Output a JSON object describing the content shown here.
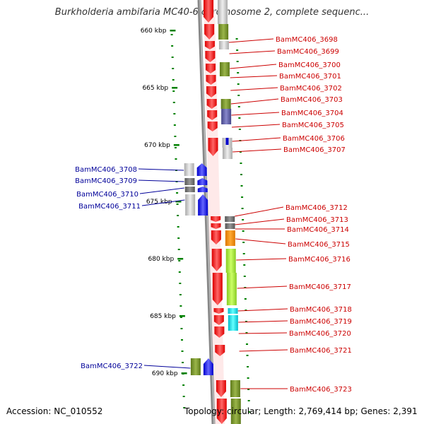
{
  "title": "Burkholderia ambifaria MC40-6 chromosome 2, complete sequenc...",
  "footer": {
    "accession": "Accession: NC_010552",
    "stats": "Topology: circular; Length: 2,769,414 bp; Genes: 2,391"
  },
  "colors": {
    "red_gene": "#ff0000",
    "blue_gene": "#0000ff",
    "right_label": "#cc0000",
    "left_label": "#000099",
    "tick": "#008000",
    "backbone": "#888888"
  },
  "ruler": [
    {
      "label": "660 kbp"
    },
    {
      "label": "665 kbp"
    },
    {
      "label": "670 kbp"
    },
    {
      "label": "675 kbp"
    },
    {
      "label": "680 kbp"
    },
    {
      "label": "685 kbp"
    },
    {
      "label": "690 kbp"
    }
  ],
  "right_labels": [
    "BamMC406_3698",
    "BamMC406_3699",
    "BamMC406_3700",
    "BamMC406_3701",
    "BamMC406_3702",
    "BamMC406_3703",
    "BamMC406_3704",
    "BamMC406_3705",
    "BamMC406_3706",
    "BamMC406_3707",
    "BamMC406_3712",
    "BamMC406_3713",
    "BamMC406_3714",
    "BamMC406_3715",
    "BamMC406_3716",
    "BamMC406_3717",
    "BamMC406_3718",
    "BamMC406_3719",
    "BamMC406_3720",
    "BamMC406_3721",
    "BamMC406_3723"
  ],
  "left_labels": [
    "BamMC406_3708",
    "BamMC406_3709",
    "BamMC406_3710",
    "BamMC406_3711",
    "BamMC406_3722"
  ]
}
